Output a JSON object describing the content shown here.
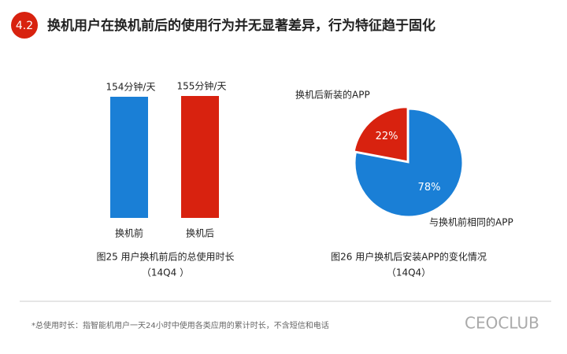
{
  "header": {
    "badge": "4.2",
    "title": "换机用户在换机前后的使用行为并无显著差异，行为特征趋于固化"
  },
  "chart_data": [
    {
      "type": "bar",
      "title": "图25 用户换机前后的总使用时长",
      "subtitle": "（14Q4 ）",
      "categories": [
        "换机前",
        "换机后"
      ],
      "values": [
        154,
        155
      ],
      "value_labels": [
        "154分钟/天",
        "155分钟/天"
      ],
      "colors": [
        "#1a7fd6",
        "#d8220f"
      ]
    },
    {
      "type": "pie",
      "title": "图26 用户换机后安装APP的变化情况",
      "subtitle": "（14Q4）",
      "categories": [
        "换机后新装的APP",
        "与换机前相同的APP"
      ],
      "values": [
        22,
        78
      ],
      "value_labels": [
        "22%",
        "78%"
      ],
      "colors": [
        "#d8220f",
        "#1a7fd6"
      ]
    }
  ],
  "footnote": "*总使用时长：指智能机用户一天24小时中使用各类应用的累计时长，不含短信和电话",
  "watermark": "CEOCLUB"
}
